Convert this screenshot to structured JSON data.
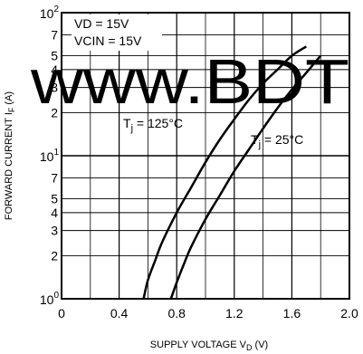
{
  "chart_data": {
    "type": "line",
    "xlabel": "SUPPLY VOLTAGE V",
    "xlabel_sub": "D",
    "xlabel_unit": " (V)",
    "ylabel": "FORWARD CURRENT I",
    "ylabel_sub": "F",
    "ylabel_unit": " (A)",
    "x_scale": "linear",
    "y_scale": "log",
    "xlim": [
      0,
      2.0
    ],
    "ylim": [
      1,
      100
    ],
    "x_ticks": [
      {
        "value": 0,
        "label": "0"
      },
      {
        "value": 0.4,
        "label": "0.4"
      },
      {
        "value": 0.8,
        "label": "0.8"
      },
      {
        "value": 1.2,
        "label": "1.2"
      },
      {
        "value": 1.6,
        "label": "1.6"
      },
      {
        "value": 2.0,
        "label": "2.0"
      }
    ],
    "y_ticks": [
      {
        "value": 1,
        "mantissa": "10",
        "exponent": "0"
      },
      {
        "value": 2,
        "label": "2"
      },
      {
        "value": 3,
        "label": "3"
      },
      {
        "value": 4,
        "label": "4"
      },
      {
        "value": 5,
        "label": "5"
      },
      {
        "value": 7,
        "label": "7"
      },
      {
        "value": 10,
        "mantissa": "10",
        "exponent": "1"
      },
      {
        "value": 20,
        "label": "2"
      },
      {
        "value": 30,
        "label": "3"
      },
      {
        "value": 40,
        "label": "4"
      },
      {
        "value": 50,
        "label": "5"
      },
      {
        "value": 70,
        "label": "7"
      },
      {
        "value": 100,
        "mantissa": "10",
        "exponent": "2"
      }
    ],
    "grid": true,
    "conditions": [
      "VD = 15V",
      "VCIN = 15V"
    ],
    "series": [
      {
        "name": "Tj = 125°C",
        "label_main": "T",
        "label_sub": "j",
        "label_rest": " = 125°C",
        "color": "#000000",
        "x": [
          0.57,
          0.6,
          0.65,
          0.7,
          0.8,
          0.9,
          1.0,
          1.1,
          1.2,
          1.3,
          1.4,
          1.5,
          1.6,
          1.7
        ],
        "y": [
          1.0,
          1.35,
          1.85,
          2.5,
          4.0,
          6.0,
          9.0,
          13.0,
          18.0,
          24.5,
          32.0,
          40.0,
          50.0,
          58.0
        ]
      },
      {
        "name": "Tj = 25°C",
        "label_main": "T",
        "label_sub": "j",
        "label_rest": " = 25°C",
        "color": "#000000",
        "x": [
          0.76,
          0.8,
          0.85,
          0.9,
          1.0,
          1.1,
          1.2,
          1.3,
          1.4,
          1.5,
          1.6,
          1.7,
          1.8
        ],
        "y": [
          1.0,
          1.3,
          1.75,
          2.3,
          3.6,
          5.3,
          7.8,
          11.0,
          15.5,
          21.5,
          29.0,
          38.0,
          50.0
        ]
      }
    ]
  },
  "watermark": {
    "text": "www.BDT",
    "color": "#2b22ff"
  }
}
